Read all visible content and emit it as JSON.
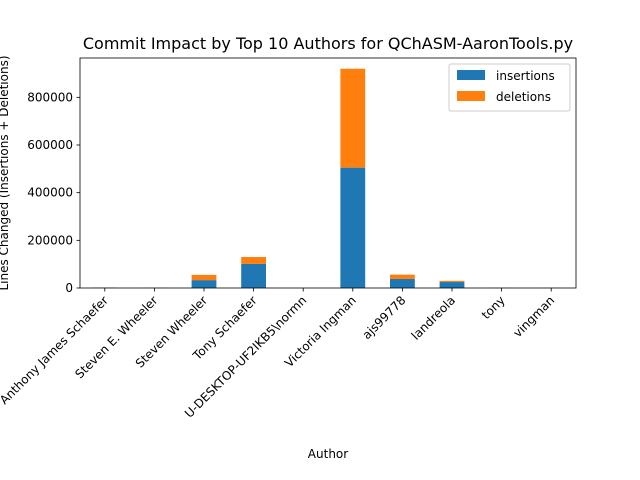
{
  "chart_data": {
    "type": "bar",
    "stacked": true,
    "title": "Commit Impact by Top 10 Authors for QChASM-AaronTools.py",
    "xlabel": "Author",
    "ylabel": "Lines Changed (Insertions + Deletions)",
    "categories": [
      "Anthony James Schaefer",
      "Steven E. Wheeler",
      "Steven Wheeler",
      "Tony Schaefer",
      "U-DESKTOP-UF2IKB5\\normn",
      "Victoria Ingman",
      "ajs99778",
      "landreola",
      "tony",
      "vingman"
    ],
    "series": [
      {
        "name": "insertions",
        "color": "#1f77b4",
        "values": [
          1500,
          800,
          33000,
          101000,
          200,
          505000,
          38000,
          25000,
          300,
          400
        ]
      },
      {
        "name": "deletions",
        "color": "#ff7f0e",
        "values": [
          500,
          300,
          22000,
          29000,
          100,
          415000,
          18000,
          5000,
          100,
          100
        ]
      }
    ],
    "ylim": [
      0,
      965000
    ],
    "yticks": [
      0,
      200000,
      400000,
      600000,
      800000
    ],
    "ytick_labels": [
      "0",
      "200000",
      "400000",
      "600000",
      "800000"
    ],
    "legend_position": "top-right",
    "grid": false
  }
}
